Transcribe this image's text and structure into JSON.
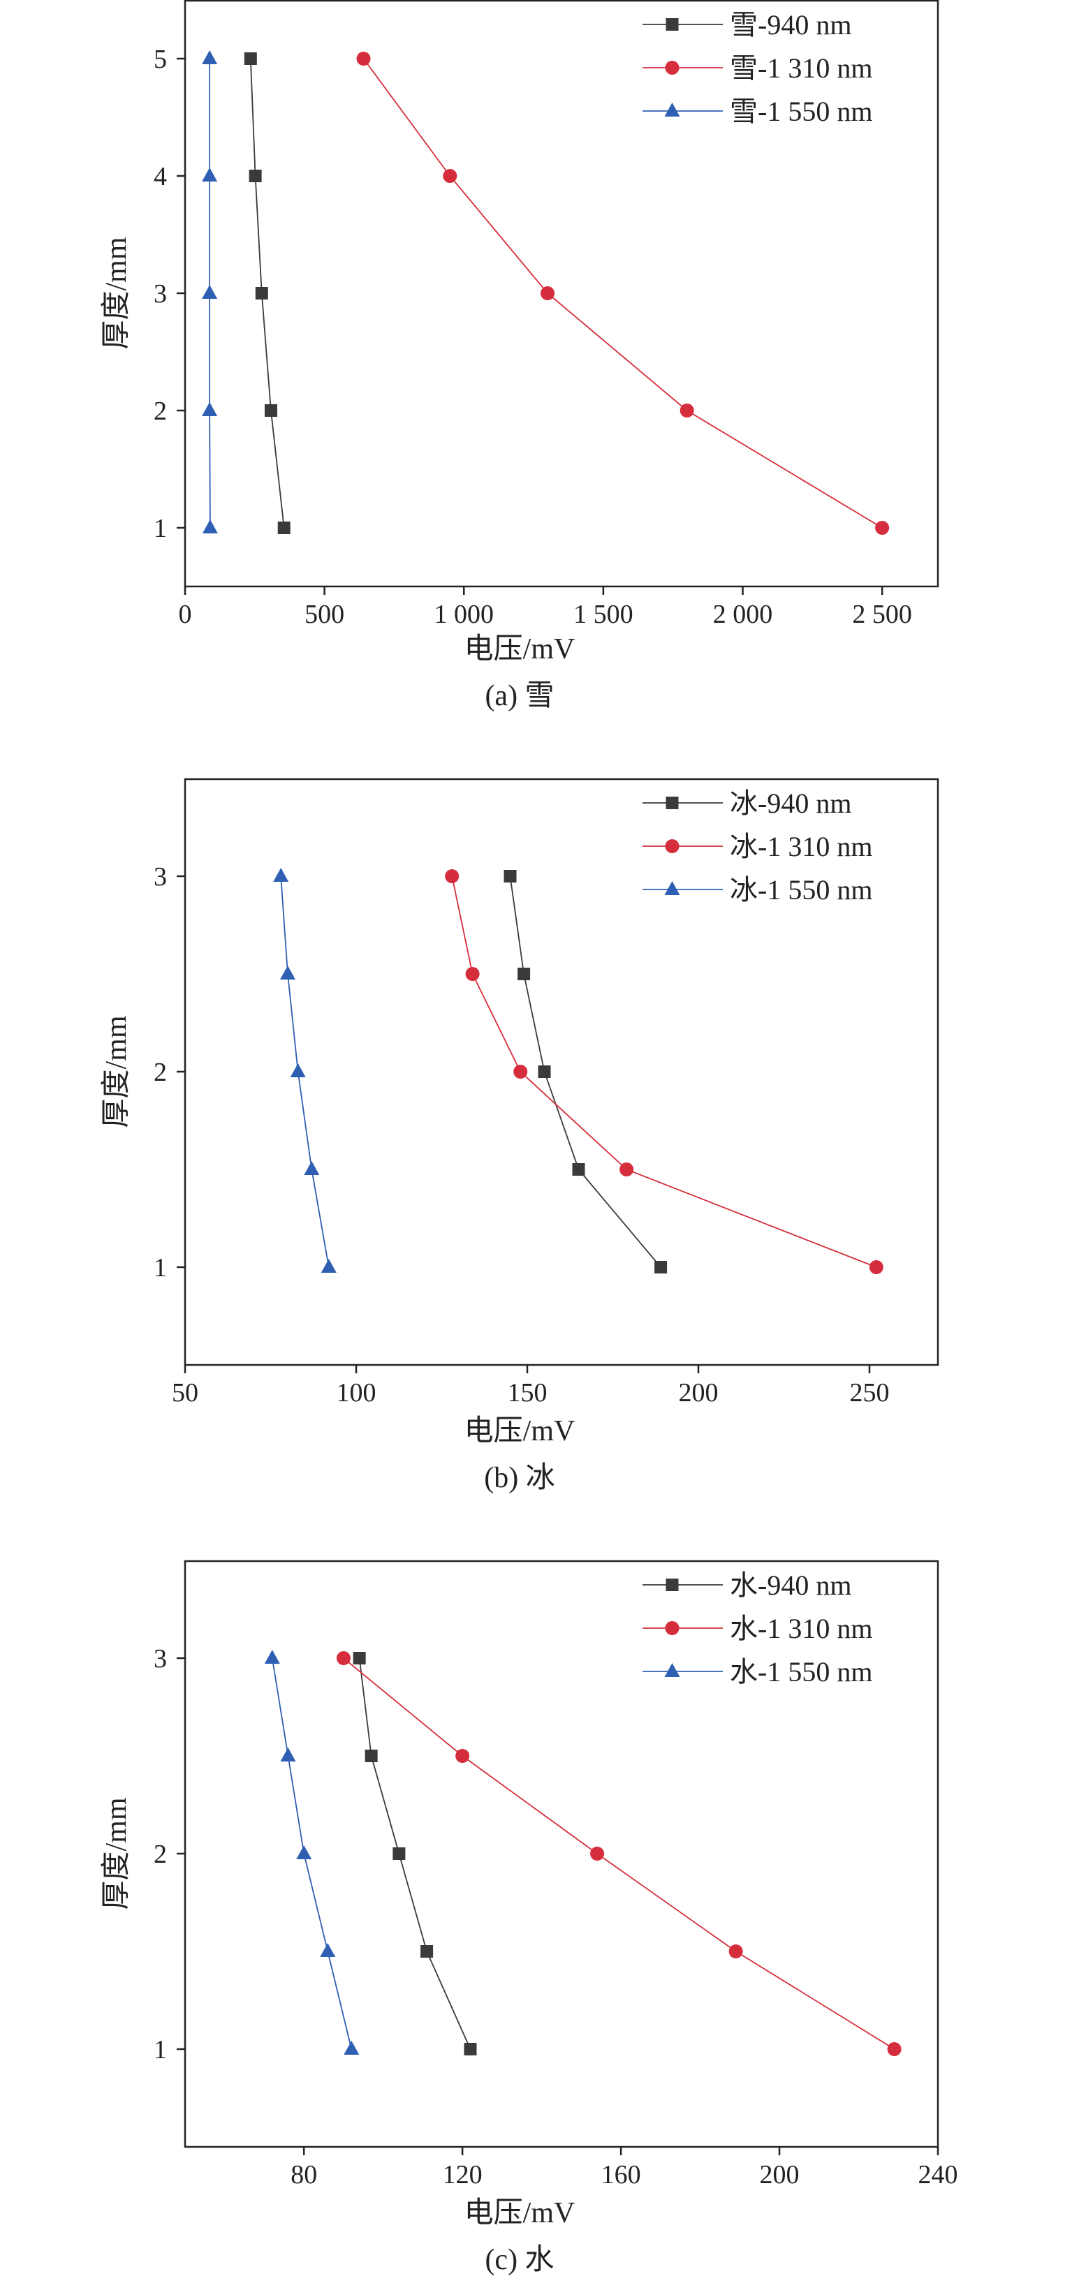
{
  "chart_data": [
    {
      "type": "line",
      "caption": "(a) 雪",
      "xlabel": "电压/mV",
      "ylabel": "厚度/mm",
      "xlim": [
        0,
        2700
      ],
      "ylim": [
        0.5,
        5.5
      ],
      "xticks": [
        0,
        500,
        1000,
        1500,
        2000,
        2500
      ],
      "xtick_labels": [
        "0",
        "500",
        "1 000",
        "1 500",
        "2 000",
        "2 500"
      ],
      "yticks": [
        1,
        2,
        3,
        4,
        5
      ],
      "ytick_labels": [
        "1",
        "2",
        "3",
        "4",
        "5"
      ],
      "legend_position": "top-right",
      "grid": false,
      "series": [
        {
          "name": "雪-940 nm",
          "marker": "square",
          "color": "#3a3a3a",
          "points": [
            [
              355,
              1
            ],
            [
              308,
              2
            ],
            [
              275,
              3
            ],
            [
              252,
              4
            ],
            [
              235,
              5
            ]
          ]
        },
        {
          "name": "雪-1 310 nm",
          "marker": "circle",
          "color": "#d62d3c",
          "points": [
            [
              2500,
              1
            ],
            [
              1800,
              2
            ],
            [
              1300,
              3
            ],
            [
              950,
              4
            ],
            [
              640,
              5
            ]
          ]
        },
        {
          "name": "雪-1 550 nm",
          "marker": "triangle",
          "color": "#2f5fb3",
          "points": [
            [
              90,
              1
            ],
            [
              88,
              2
            ],
            [
              88,
              3
            ],
            [
              88,
              4
            ],
            [
              88,
              5
            ]
          ]
        }
      ]
    },
    {
      "type": "line",
      "caption": "(b) 冰",
      "xlabel": "电压/mV",
      "ylabel": "厚度/mm",
      "xlim": [
        50,
        270
      ],
      "ylim": [
        0.5,
        3.5
      ],
      "xticks": [
        50,
        100,
        150,
        200,
        250
      ],
      "xtick_labels": [
        "50",
        "100",
        "150",
        "200",
        "250"
      ],
      "yticks": [
        1,
        2,
        3
      ],
      "ytick_labels": [
        "1",
        "2",
        "3"
      ],
      "legend_position": "top-right",
      "grid": false,
      "series": [
        {
          "name": "冰-940 nm",
          "marker": "square",
          "color": "#3a3a3a",
          "points": [
            [
              189,
              1
            ],
            [
              165,
              1.5
            ],
            [
              155,
              2
            ],
            [
              149,
              2.5
            ],
            [
              145,
              3
            ]
          ]
        },
        {
          "name": "冰-1 310 nm",
          "marker": "circle",
          "color": "#d62d3c",
          "points": [
            [
              252,
              1
            ],
            [
              179,
              1.5
            ],
            [
              148,
              2
            ],
            [
              134,
              2.5
            ],
            [
              128,
              3
            ]
          ]
        },
        {
          "name": "冰-1 550 nm",
          "marker": "triangle",
          "color": "#2f5fb3",
          "points": [
            [
              92,
              1
            ],
            [
              87,
              1.5
            ],
            [
              83,
              2
            ],
            [
              80,
              2.5
            ],
            [
              78,
              3
            ]
          ]
        }
      ]
    },
    {
      "type": "line",
      "caption": "(c) 水",
      "xlabel": "电压/mV",
      "ylabel": "厚度/mm",
      "xlim": [
        50,
        240
      ],
      "ylim": [
        0.5,
        3.5
      ],
      "xticks": [
        80,
        120,
        160,
        200,
        240
      ],
      "xtick_labels": [
        "80",
        "120",
        "160",
        "200",
        "240"
      ],
      "yticks": [
        1,
        2,
        3
      ],
      "ytick_labels": [
        "1",
        "2",
        "3"
      ],
      "legend_position": "top-right",
      "grid": false,
      "series": [
        {
          "name": "水-940 nm",
          "marker": "square",
          "color": "#3a3a3a",
          "points": [
            [
              122,
              1
            ],
            [
              111,
              1.5
            ],
            [
              104,
              2
            ],
            [
              97,
              2.5
            ],
            [
              94,
              3
            ]
          ]
        },
        {
          "name": "水-1 310 nm",
          "marker": "circle",
          "color": "#d62d3c",
          "points": [
            [
              229,
              1
            ],
            [
              189,
              1.5
            ],
            [
              154,
              2
            ],
            [
              120,
              2.5
            ],
            [
              90,
              3
            ]
          ]
        },
        {
          "name": "水-1 550 nm",
          "marker": "triangle",
          "color": "#2f5fb3",
          "points": [
            [
              92,
              1
            ],
            [
              86,
              1.5
            ],
            [
              80,
              2
            ],
            [
              76,
              2.5
            ],
            [
              72,
              3
            ]
          ]
        }
      ]
    }
  ]
}
